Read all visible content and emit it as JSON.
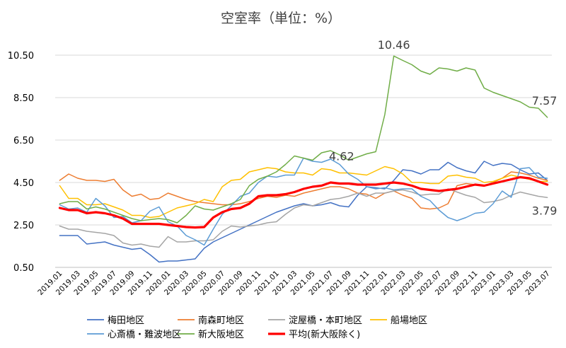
{
  "chart_data": {
    "type": "line",
    "title": "空室率（単位：%）",
    "xlabel": "",
    "ylabel": "",
    "ylim": [
      0.5,
      10.5
    ],
    "yticks": [
      "0.50",
      "2.50",
      "4.50",
      "6.50",
      "8.50",
      "10.50"
    ],
    "grid": "horizontal",
    "legend_position": "bottom",
    "x": [
      "2019.01",
      "2019.02",
      "2019.03",
      "2019.04",
      "2019.05",
      "2019.06",
      "2019.07",
      "2019.08",
      "2019.09",
      "2019.10",
      "2019.11",
      "2019.12",
      "2020.01",
      "2020.02",
      "2020.03",
      "2020.04",
      "2020.05",
      "2020.06",
      "2020.07",
      "2020.08",
      "2020.09",
      "2020.10",
      "2020.11",
      "2020.12",
      "2021.01",
      "2021.02",
      "2021.03",
      "2021.04",
      "2021.05",
      "2021.06",
      "2021.07",
      "2021.08",
      "2021.09",
      "2021.10",
      "2021.11",
      "2021.12",
      "2022.01",
      "2022.02",
      "2022.03",
      "2022.04",
      "2022.05",
      "2022.06",
      "2022.07",
      "2022.08",
      "2022.09",
      "2022.10",
      "2022.11",
      "2022.12",
      "2023.01",
      "2023.02",
      "2023.03",
      "2023.04",
      "2023.05",
      "2023.06",
      "2023.07"
    ],
    "xtick_labels": [
      "2019.01",
      "2019.03",
      "2019.05",
      "2019.07",
      "2019.09",
      "2019.11",
      "2020.01",
      "2020.03",
      "2020.05",
      "2020.07",
      "2020.09",
      "2020.11",
      "2021.01",
      "2021.03",
      "2021.05",
      "2021.07",
      "2021.09",
      "2021.11",
      "2022.01",
      "2022.03",
      "2022.05",
      "2022.07",
      "2022.09",
      "2022.11",
      "2023.01",
      "2023.03",
      "2023.05",
      "2023.07"
    ],
    "series": [
      {
        "name": "梅田地区",
        "color": "#4472C4",
        "width": 1.5,
        "values": [
          2.0,
          2.0,
          2.0,
          1.6,
          1.65,
          1.7,
          1.55,
          1.45,
          1.35,
          1.4,
          1.1,
          0.75,
          0.8,
          0.8,
          0.85,
          0.9,
          1.4,
          1.7,
          1.9,
          2.1,
          2.3,
          2.5,
          2.7,
          2.9,
          3.1,
          3.25,
          3.4,
          3.5,
          3.4,
          3.45,
          3.55,
          3.4,
          3.35,
          3.9,
          4.3,
          4.25,
          4.2,
          4.6,
          5.1,
          5.05,
          4.9,
          5.1,
          5.1,
          5.45,
          5.2,
          5.05,
          4.95,
          5.5,
          5.3,
          5.4,
          5.35,
          5.1,
          4.9,
          4.95,
          4.6
        ]
      },
      {
        "name": "南森町地区",
        "color": "#ED7D31",
        "width": 1.5,
        "values": [
          4.6,
          4.9,
          4.7,
          4.6,
          4.6,
          4.55,
          4.65,
          4.15,
          3.85,
          3.95,
          3.7,
          3.75,
          4.0,
          3.85,
          3.7,
          3.6,
          3.55,
          3.5,
          3.45,
          3.45,
          3.5,
          3.6,
          3.75,
          3.85,
          3.8,
          3.9,
          3.85,
          4.0,
          4.1,
          4.2,
          4.3,
          4.3,
          4.2,
          4.0,
          3.95,
          3.75,
          4.0,
          4.1,
          3.9,
          3.75,
          3.3,
          3.25,
          3.3,
          3.5,
          4.35,
          4.45,
          4.4,
          4.35,
          4.5,
          4.7,
          5.0,
          4.95,
          4.85,
          4.7,
          4.6
        ]
      },
      {
        "name": "淀屋橋・本町地区",
        "color": "#A5A5A5",
        "width": 1.5,
        "values": [
          2.45,
          2.3,
          2.3,
          2.2,
          2.15,
          2.1,
          2.0,
          1.65,
          1.55,
          1.6,
          1.5,
          1.45,
          1.95,
          1.7,
          1.7,
          1.75,
          1.75,
          1.8,
          2.2,
          2.45,
          2.4,
          2.45,
          2.5,
          2.6,
          2.65,
          3.0,
          3.3,
          3.45,
          3.4,
          3.55,
          3.7,
          3.75,
          3.85,
          4.0,
          3.85,
          4.0,
          4.0,
          4.1,
          4.15,
          4.05,
          3.9,
          3.95,
          3.95,
          4.2,
          4.05,
          3.9,
          3.8,
          3.55,
          3.6,
          3.7,
          3.9,
          4.05,
          3.95,
          3.85,
          3.79
        ]
      },
      {
        "name": "船場地区",
        "color": "#FFC000",
        "width": 1.5,
        "values": [
          4.35,
          3.75,
          3.75,
          3.45,
          3.45,
          3.5,
          3.35,
          3.2,
          2.95,
          2.95,
          2.85,
          2.9,
          3.1,
          3.3,
          3.4,
          3.5,
          3.7,
          3.6,
          4.3,
          4.6,
          4.65,
          5.0,
          5.1,
          5.2,
          5.15,
          5.0,
          4.95,
          4.95,
          4.85,
          5.15,
          5.1,
          4.95,
          4.95,
          4.9,
          4.85,
          5.05,
          5.25,
          5.15,
          4.9,
          4.5,
          4.5,
          4.45,
          4.45,
          4.8,
          4.85,
          4.75,
          4.7,
          4.5,
          4.55,
          4.7,
          4.85,
          4.75,
          4.65,
          4.55,
          4.55
        ]
      },
      {
        "name": "心斎橋・難波地区",
        "color": "#5B9BD5",
        "width": 1.5,
        "values": [
          3.45,
          3.25,
          3.3,
          3.1,
          3.75,
          3.4,
          2.85,
          2.9,
          2.6,
          2.7,
          3.15,
          3.35,
          2.65,
          2.45,
          2.0,
          1.8,
          1.55,
          2.3,
          3.0,
          3.4,
          3.85,
          4.0,
          4.5,
          4.8,
          4.75,
          4.85,
          4.85,
          5.65,
          5.5,
          5.45,
          5.6,
          5.35,
          4.9,
          4.65,
          4.3,
          4.2,
          4.25,
          4.15,
          4.2,
          4.2,
          3.85,
          3.65,
          3.2,
          2.85,
          2.7,
          2.85,
          3.05,
          3.1,
          3.5,
          4.1,
          3.8,
          5.15,
          5.2,
          4.75,
          4.7
        ]
      },
      {
        "name": "新大阪地区",
        "color": "#70AD47",
        "width": 1.5,
        "values": [
          3.5,
          3.6,
          3.6,
          3.25,
          3.35,
          3.25,
          3.1,
          2.95,
          2.8,
          2.7,
          2.75,
          2.8,
          2.75,
          2.6,
          2.95,
          3.4,
          3.25,
          3.2,
          3.35,
          3.5,
          3.7,
          4.35,
          4.65,
          4.8,
          5.0,
          5.35,
          5.75,
          5.65,
          5.55,
          5.9,
          6.0,
          5.8,
          5.55,
          5.7,
          5.85,
          5.95,
          7.7,
          10.46,
          10.25,
          10.05,
          9.75,
          9.6,
          9.9,
          9.85,
          9.75,
          9.9,
          9.8,
          8.95,
          8.75,
          8.6,
          8.45,
          8.3,
          8.05,
          8.0,
          7.57
        ]
      },
      {
        "name": "平均(新大阪除く)",
        "color": "#FF0000",
        "width": 3.2,
        "values": [
          3.3,
          3.2,
          3.2,
          3.05,
          3.1,
          3.05,
          2.95,
          2.8,
          2.55,
          2.55,
          2.55,
          2.55,
          2.5,
          2.45,
          2.4,
          2.38,
          2.4,
          2.85,
          3.1,
          3.25,
          3.3,
          3.5,
          3.85,
          3.9,
          3.9,
          3.95,
          4.05,
          4.2,
          4.3,
          4.35,
          4.5,
          4.45,
          4.45,
          4.4,
          4.4,
          4.4,
          4.45,
          4.5,
          4.45,
          4.35,
          4.2,
          4.15,
          4.1,
          4.15,
          4.2,
          4.3,
          4.4,
          4.35,
          4.45,
          4.55,
          4.65,
          4.75,
          4.7,
          4.55,
          4.4
        ]
      }
    ],
    "annotations": [
      {
        "text": "10.46",
        "x": "2022.02",
        "y": 10.46
      },
      {
        "text": "7.57",
        "x": "2023.07",
        "y": 7.57
      },
      {
        "text": "4.62",
        "x": "2021.09",
        "y": 4.62
      },
      {
        "text": "3.79",
        "x": "2023.07",
        "y": 3.79
      }
    ]
  }
}
